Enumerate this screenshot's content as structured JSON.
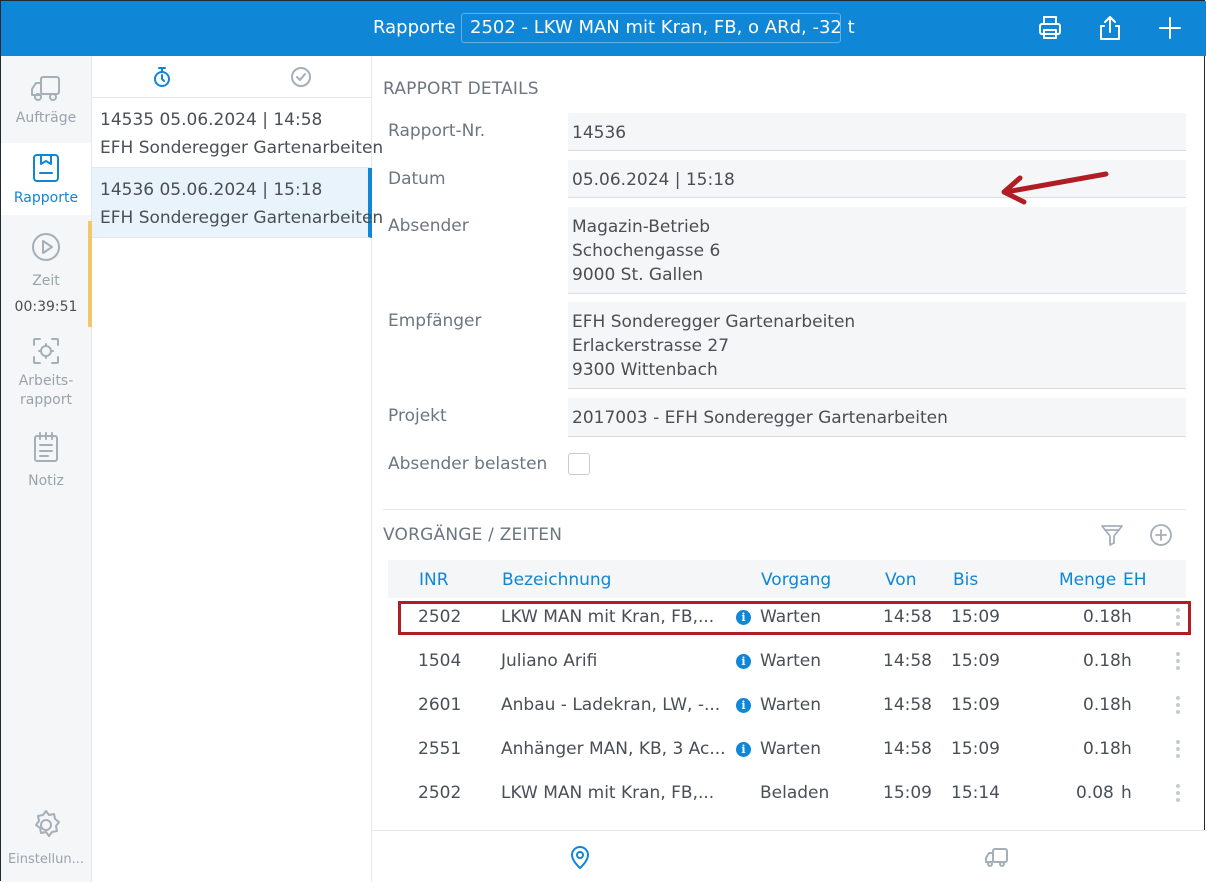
{
  "topbar": {
    "title": "Rapporte",
    "selected_vehicle": "2502 - LKW MAN mit Kran, FB, o ARd, -32 t",
    "icons": [
      "print-icon",
      "share-icon",
      "plus-icon"
    ]
  },
  "sidebar": {
    "items": [
      {
        "label": "Aufträge",
        "icon": "truck-icon"
      },
      {
        "label": "Rapporte",
        "icon": "report-icon"
      },
      {
        "label": "Zeit",
        "icon": "play-circle-icon",
        "value": "00:39:51"
      },
      {
        "label": "Arbeits-",
        "label2": "rapport",
        "icon": "work-report-icon"
      },
      {
        "label": "Notiz",
        "icon": "notepad-icon"
      }
    ],
    "settings_label": "Einstellun..."
  },
  "list": {
    "items": [
      {
        "line1": "14535  05.06.2024 | 14:58",
        "line2": "EFH Sonderegger Gartenarbeiten"
      },
      {
        "line1": "14536  05.06.2024 | 15:18",
        "line2": "EFH Sonderegger Gartenarbeiten"
      }
    ]
  },
  "details": {
    "section_title": "RAPPORT DETAILS",
    "rapport_nr_label": "Rapport-Nr.",
    "rapport_nr": "14536",
    "datum_label": "Datum",
    "datum": "05.06.2024 | 15:18",
    "absender_label": "Absender",
    "absender": [
      "Magazin-Betrieb",
      "Schochengasse 6",
      "9000 St. Gallen"
    ],
    "empfaenger_label": "Empfänger",
    "empfaenger": [
      "EFH Sonderegger Gartenarbeiten",
      "Erlackerstrasse 27",
      "9300 Wittenbach"
    ],
    "projekt_label": "Projekt",
    "projekt": "2017003 - EFH Sonderegger Gartenarbeiten",
    "absender_belasten_label": "Absender belasten",
    "absender_belasten": false
  },
  "vorgaenge": {
    "section_title": "VORGÄNGE / ZEITEN",
    "columns": [
      "INR",
      "Bezeichnung",
      "Vorgang",
      "Von",
      "Bis",
      "Menge",
      "EH"
    ],
    "rows": [
      {
        "inr": "2502",
        "bez": "LKW MAN mit Kran, FB,...",
        "info": true,
        "vorgang": "Warten",
        "von": "14:58",
        "bis": "15:09",
        "menge": "0.18",
        "eh": "h"
      },
      {
        "inr": "1504",
        "bez": "Juliano Arifi",
        "info": true,
        "vorgang": "Warten",
        "von": "14:58",
        "bis": "15:09",
        "menge": "0.18",
        "eh": "h"
      },
      {
        "inr": "2601",
        "bez": "Anbau - Ladekran, LW, -...",
        "info": true,
        "vorgang": "Warten",
        "von": "14:58",
        "bis": "15:09",
        "menge": "0.18",
        "eh": "h"
      },
      {
        "inr": "2551",
        "bez": "Anhänger MAN, KB, 3 Ac...",
        "info": true,
        "vorgang": "Warten",
        "von": "14:58",
        "bis": "15:09",
        "menge": "0.18",
        "eh": "h"
      },
      {
        "inr": "2502",
        "bez": "LKW MAN mit Kran, FB,...",
        "info": false,
        "vorgang": "Beladen",
        "von": "15:09",
        "bis": "15:14",
        "menge": "0.08",
        "eh": "h"
      }
    ]
  },
  "colors": {
    "accent": "#1086d6",
    "highlight": "#b01e23",
    "timer_bar": "#f3c66a"
  }
}
